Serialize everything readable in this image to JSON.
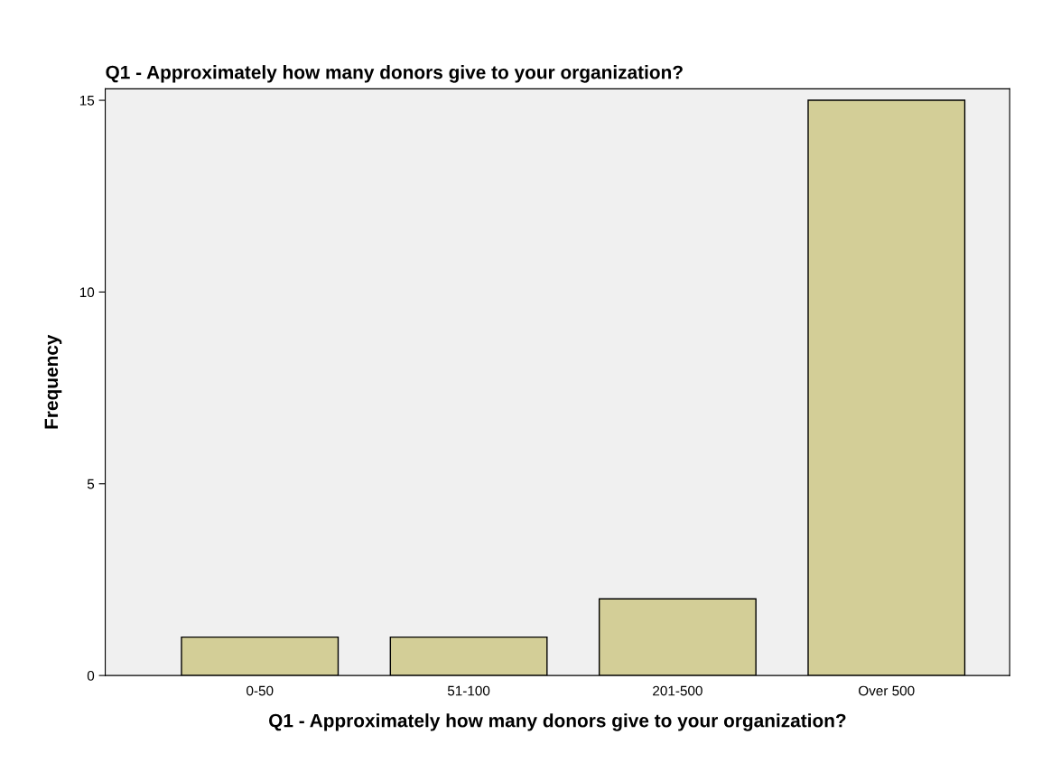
{
  "chart_data": {
    "type": "bar",
    "title": "Q1 - Approximately how many donors give to your organization?",
    "xlabel": "Q1 - Approximately how many donors give to your organization?",
    "ylabel": "Frequency",
    "categories": [
      "0-50",
      "51-100",
      "201-500",
      "Over 500"
    ],
    "values": [
      1,
      1,
      2,
      15
    ],
    "color": "#d3ce97",
    "ylim": [
      0,
      15.3
    ],
    "yticks": [
      0,
      5,
      10,
      15
    ],
    "grid": false
  }
}
